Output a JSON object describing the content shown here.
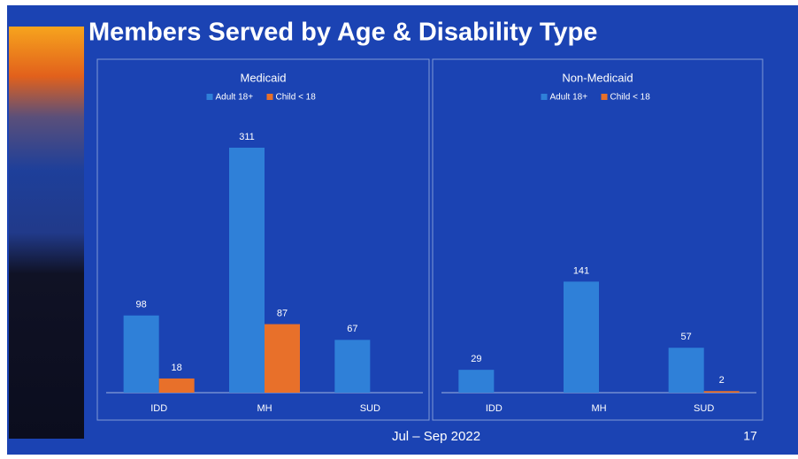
{
  "title": "Members Served by Age & Disability Type",
  "date_range": "Jul – Sep 2022",
  "page_number": 17,
  "chart_data": [
    {
      "type": "bar",
      "title": "Medicaid",
      "categories": [
        "IDD",
        "MH",
        "SUD"
      ],
      "series": [
        {
          "name": "Adult 18+",
          "color": "#2f80d8",
          "values": [
            98,
            311,
            67
          ]
        },
        {
          "name": "Child < 18",
          "color": "#e8702a",
          "values": [
            18,
            87,
            null
          ]
        }
      ]
    },
    {
      "type": "bar",
      "title": "Non-Medicaid",
      "categories": [
        "IDD",
        "MH",
        "SUD"
      ],
      "series": [
        {
          "name": "Adult 18+",
          "color": "#2f80d8",
          "values": [
            29,
            141,
            57
          ]
        },
        {
          "name": "Child < 18",
          "color": "#e8702a",
          "values": [
            null,
            null,
            2
          ]
        }
      ]
    }
  ]
}
